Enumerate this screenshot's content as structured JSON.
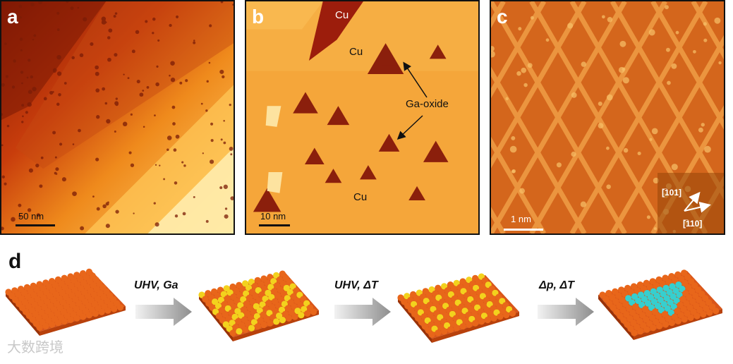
{
  "panels": {
    "a": {
      "label": "a",
      "scale": "50 nm"
    },
    "b": {
      "label": "b",
      "scale": "10 nm",
      "annotations": {
        "cu_top": "Cu",
        "cu_mid": "Cu",
        "cu_bottom": "Cu",
        "ga_oxide": "Ga-oxide"
      }
    },
    "c": {
      "label": "c",
      "scale": "1 nm",
      "dir1": "[̅101]",
      "dir2": "[̅110]"
    }
  },
  "d": {
    "label": "d",
    "steps": [
      "UHV, Ga",
      "UHV, ΔT",
      "Δp, ΔT"
    ]
  },
  "colors": {
    "copper": "#e8661a",
    "gallium": "#f3d21d",
    "oxide": "#36cfcf"
  },
  "watermark": "大数跨境"
}
